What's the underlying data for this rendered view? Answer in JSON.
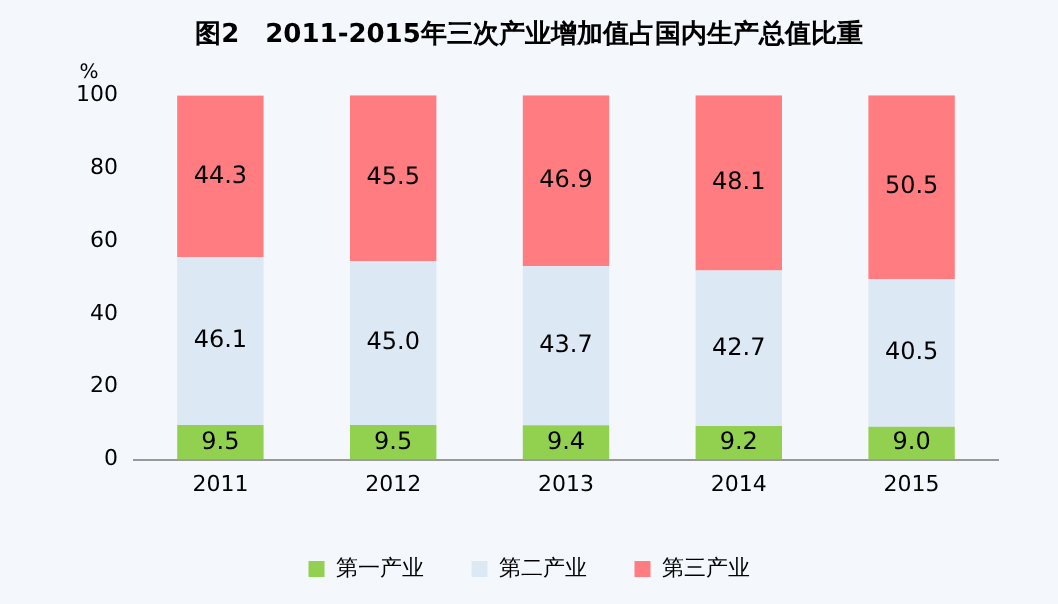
{
  "chart_data": {
    "type": "bar",
    "title": "图2　2011-2015年三次产业增加值占国内生产总值比重",
    "ylabel": "%",
    "categories": [
      "2011",
      "2012",
      "2013",
      "2014",
      "2015"
    ],
    "stacked": true,
    "ylim": [
      0,
      100
    ],
    "yticks": [
      0,
      20,
      40,
      60,
      80,
      100
    ],
    "grid": false,
    "legend": "bottom",
    "series": [
      {
        "name": "第一产业",
        "color": "#92d050",
        "values": [
          9.5,
          9.5,
          9.4,
          9.2,
          9.0
        ],
        "value_labels": [
          "9.5",
          "9.5",
          "9.4",
          "9.2",
          "9.0"
        ]
      },
      {
        "name": "第二产业",
        "color": "#dce9f5",
        "values": [
          46.1,
          45.0,
          43.7,
          42.7,
          40.5
        ],
        "value_labels": [
          "46.1",
          "45.0",
          "43.7",
          "42.7",
          "40.5"
        ]
      },
      {
        "name": "第三产业",
        "color": "#ff7c80",
        "values": [
          44.3,
          45.5,
          46.9,
          48.1,
          50.5
        ],
        "value_labels": [
          "44.3",
          "45.5",
          "46.9",
          "48.1",
          "50.5"
        ]
      }
    ]
  }
}
